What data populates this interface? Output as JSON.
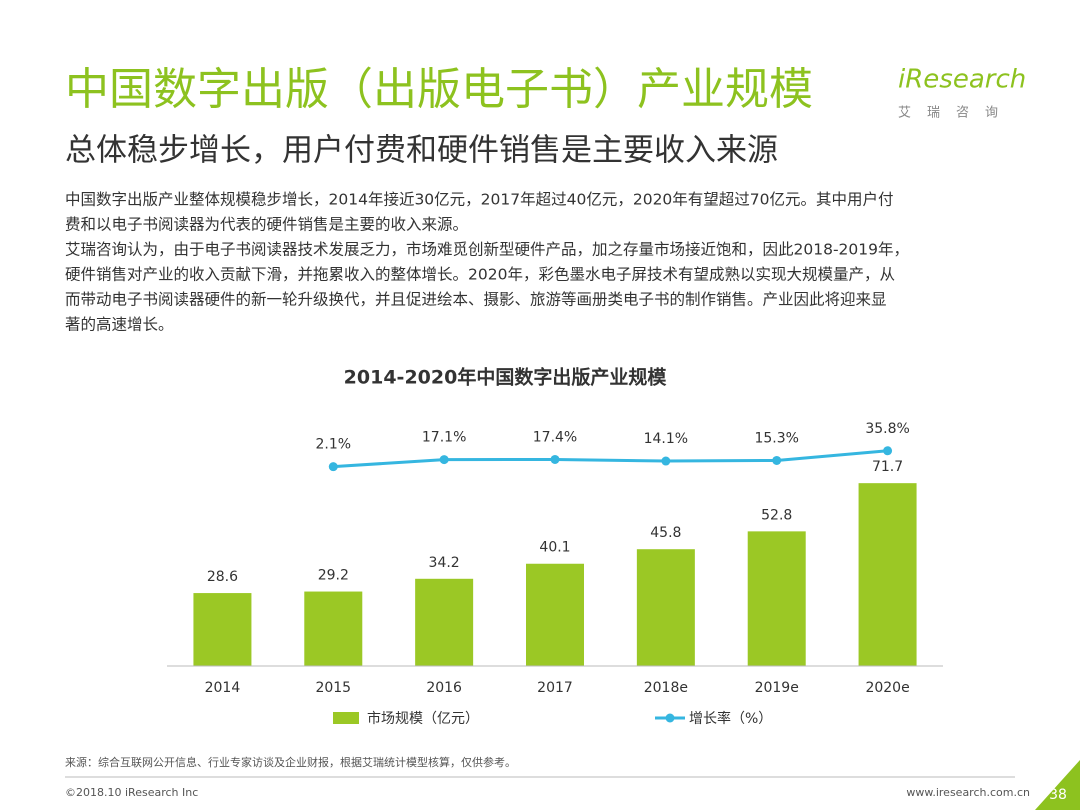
{
  "header": {
    "title": "中国数字出版（出版电子书）产业规模",
    "subtitle": "总体稳步增长，用户付费和硬件销售是主要收入来源",
    "logo": "iResearch",
    "logo_cn": "艾瑞咨询"
  },
  "body": {
    "lines": [
      "中国数字出版产业整体规模稳步增长，2014年接近30亿元，2017年超过40亿元，2020年有望超过70亿元。其中用户付",
      "费和以电子书阅读器为代表的硬件销售是主要的收入来源。",
      "艾瑞咨询认为，由于电子书阅读器技术发展乏力，市场难觅创新型硬件产品，加之存量市场接近饱和，因此2018-2019年，",
      "硬件销售对产业的收入贡献下滑，并拖累收入的整体增长。2020年，彩色墨水电子屏技术有望成熟以实现大规模量产，从",
      "而带动电子书阅读器硬件的新一轮升级换代，并且促进绘本、摄影、旅游等画册类电子书的制作销售。产业因此将迎来显",
      "著的高速增长。"
    ]
  },
  "chart_data": {
    "type": "bar",
    "title": "2014-2020年中国数字出版产业规模",
    "categories": [
      "2014",
      "2015",
      "2016",
      "2017",
      "2018e",
      "2019e",
      "2020e"
    ],
    "series": [
      {
        "name": "市场规模（亿元）",
        "type": "bar",
        "color": "#9bc825",
        "values": [
          28.6,
          29.2,
          34.2,
          40.1,
          45.8,
          52.8,
          71.7
        ]
      },
      {
        "name": "增长率（%）",
        "type": "line",
        "axis": "y2",
        "color": "#35b6e0",
        "values": [
          null,
          2.1,
          17.1,
          17.4,
          14.1,
          15.3,
          35.8
        ],
        "value_labels": [
          null,
          "2.1%",
          "17.1%",
          "17.4%",
          "14.1%",
          "15.3%",
          "35.8%"
        ]
      }
    ],
    "ylim": [
      0,
      100
    ],
    "y2lim": [
      -420,
      120
    ]
  },
  "footer": {
    "source": "来源：综合互联网公开信息、行业专家访谈及企业财报，根据艾瑞统计模型核算，仅供参考。",
    "copyright": "©2018.10 iResearch Inc",
    "url": "www.iresearch.com.cn",
    "page": "38"
  }
}
